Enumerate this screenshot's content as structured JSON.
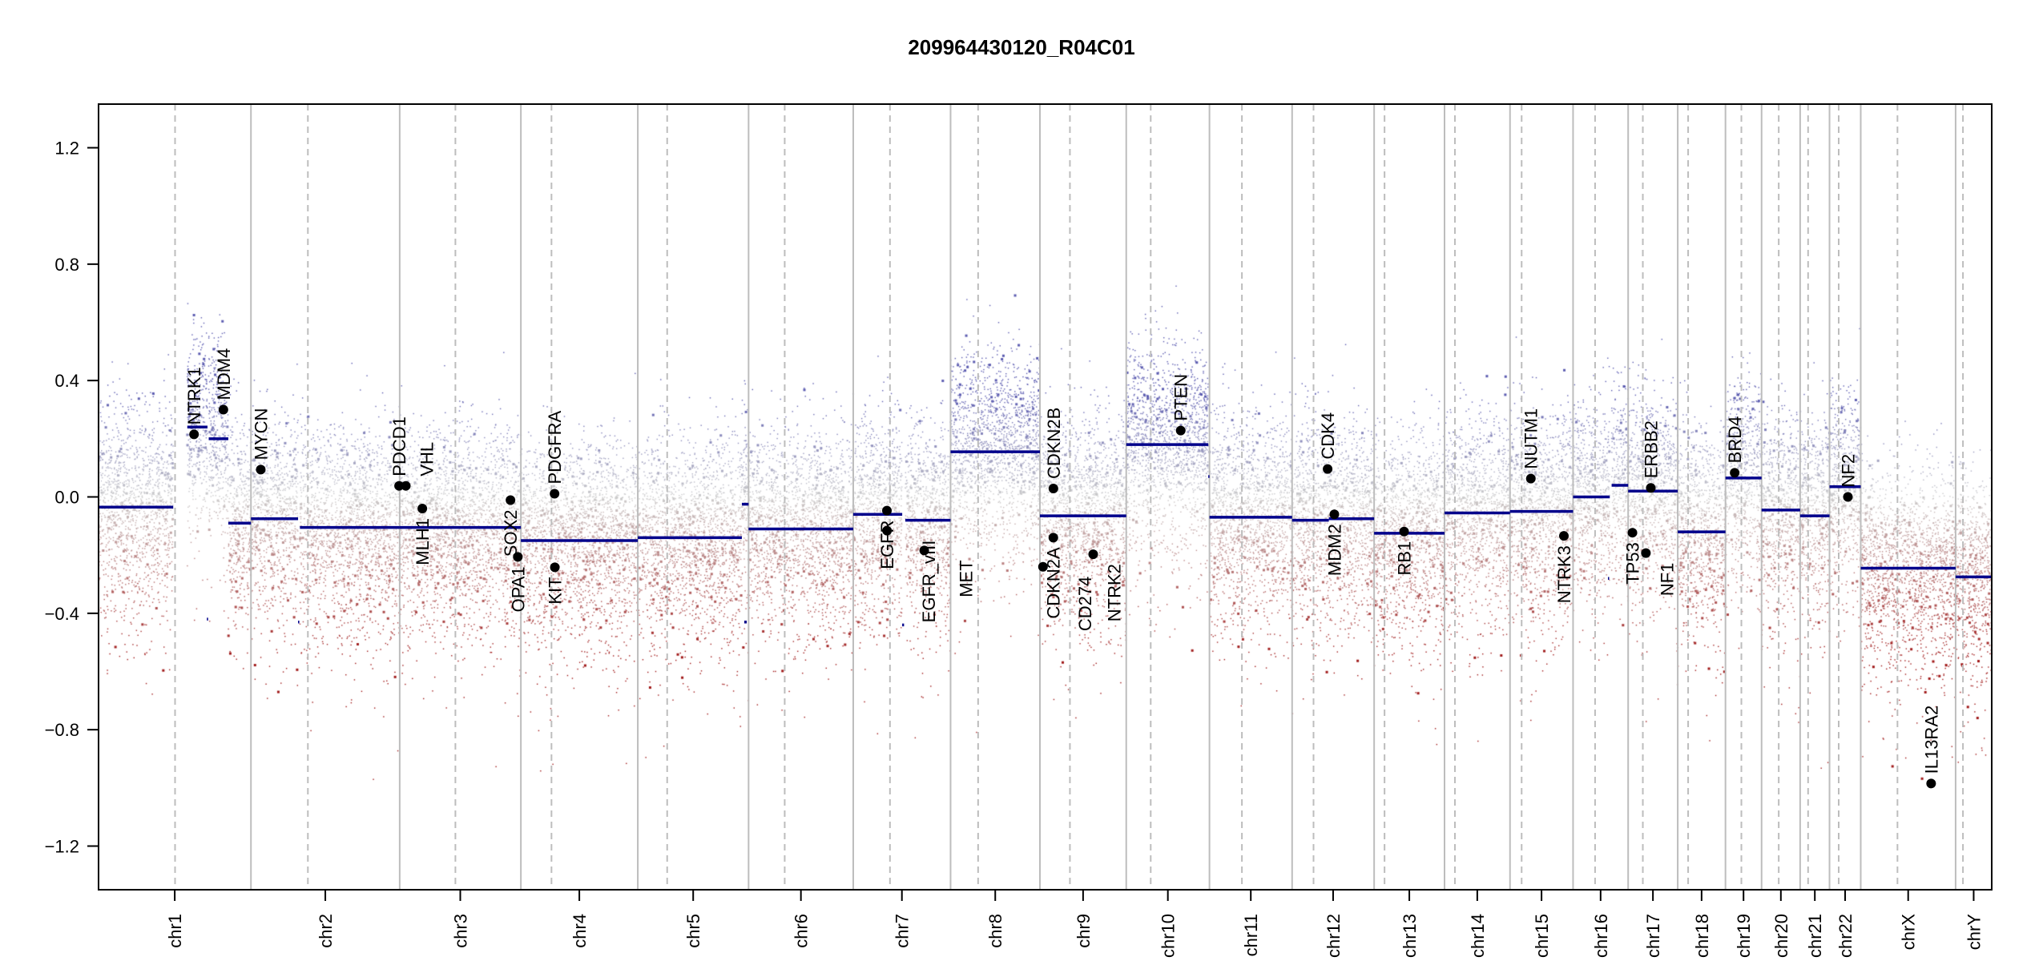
{
  "chart_data": {
    "type": "scatter",
    "title": "209964430120_R04C01",
    "xlabel": "",
    "ylabel": "",
    "ylim": [
      -1.35,
      1.35
    ],
    "yticks": [
      1.2,
      0.8,
      0.4,
      0.0,
      -0.4,
      -0.8,
      -1.2
    ],
    "ytick_labels": [
      "1.2",
      "0.8",
      "0.4",
      "0.0",
      "−0.4",
      "−0.8",
      "−1.2"
    ],
    "chromosomes": [
      "chr1",
      "chr2",
      "chr3",
      "chr4",
      "chr5",
      "chr6",
      "chr7",
      "chr8",
      "chr9",
      "chr10",
      "chr11",
      "chr12",
      "chr13",
      "chr14",
      "chr15",
      "chr16",
      "chr17",
      "chr18",
      "chr19",
      "chr20",
      "chr21",
      "chr22",
      "chrX",
      "chrY"
    ],
    "chrom_lengths_mb": [
      249,
      243,
      198,
      191,
      181,
      171,
      159,
      146,
      141,
      136,
      135,
      134,
      115,
      107,
      103,
      90,
      81,
      78,
      59,
      63,
      48,
      51,
      155,
      59
    ],
    "centromeres_mb": [
      125,
      93,
      91,
      50,
      48,
      59,
      60,
      45,
      49,
      40,
      53,
      35,
      17,
      17,
      19,
      36,
      24,
      17,
      26,
      28,
      13,
      15,
      60,
      12
    ],
    "segments": [
      {
        "chr": "chr1",
        "start": 0,
        "end": 122,
        "mean": -0.035
      },
      {
        "chr": "chr1",
        "start": 145,
        "end": 178,
        "mean": 0.24
      },
      {
        "chr": "chr1",
        "start": 177,
        "end": 179,
        "mean": -0.42
      },
      {
        "chr": "chr1",
        "start": 180,
        "end": 212,
        "mean": 0.2
      },
      {
        "chr": "chr1",
        "start": 212,
        "end": 249,
        "mean": -0.09
      },
      {
        "chr": "chr2",
        "start": 0,
        "end": 77,
        "mean": -0.075
      },
      {
        "chr": "chr2",
        "start": 77,
        "end": 79,
        "mean": -0.43
      },
      {
        "chr": "chr2",
        "start": 80,
        "end": 243,
        "mean": -0.105
      },
      {
        "chr": "chr3",
        "start": 0,
        "end": 198,
        "mean": -0.105
      },
      {
        "chr": "chr4",
        "start": 0,
        "end": 191,
        "mean": -0.15
      },
      {
        "chr": "chr5",
        "start": 0,
        "end": 170,
        "mean": -0.14
      },
      {
        "chr": "chr5",
        "start": 170,
        "end": 181,
        "mean": -0.025
      },
      {
        "chr": "chr5",
        "start": 174,
        "end": 178,
        "mean": -0.43
      },
      {
        "chr": "chr6",
        "start": 0,
        "end": 171,
        "mean": -0.11
      },
      {
        "chr": "chr7",
        "start": 0,
        "end": 80,
        "mean": -0.06
      },
      {
        "chr": "chr7",
        "start": 80,
        "end": 83,
        "mean": -0.44
      },
      {
        "chr": "chr7",
        "start": 85,
        "end": 159,
        "mean": -0.08
      },
      {
        "chr": "chr8",
        "start": 0,
        "end": 146,
        "mean": 0.155
      },
      {
        "chr": "chr9",
        "start": 0,
        "end": 141,
        "mean": -0.065
      },
      {
        "chr": "chr10",
        "start": 0,
        "end": 134,
        "mean": 0.18
      },
      {
        "chr": "chr10",
        "start": 134,
        "end": 136,
        "mean": 0.07
      },
      {
        "chr": "chr11",
        "start": 0,
        "end": 135,
        "mean": -0.07
      },
      {
        "chr": "chr12",
        "start": 0,
        "end": 60,
        "mean": -0.08
      },
      {
        "chr": "chr12",
        "start": 60,
        "end": 134,
        "mean": -0.075
      },
      {
        "chr": "chr13",
        "start": 0,
        "end": 115,
        "mean": -0.125
      },
      {
        "chr": "chr14",
        "start": 0,
        "end": 107,
        "mean": -0.055
      },
      {
        "chr": "chr15",
        "start": 0,
        "end": 103,
        "mean": -0.05
      },
      {
        "chr": "chr16",
        "start": 0,
        "end": 60,
        "mean": 0.0
      },
      {
        "chr": "chr16",
        "start": 57,
        "end": 59,
        "mean": -0.28
      },
      {
        "chr": "chr16",
        "start": 63,
        "end": 90,
        "mean": 0.04
      },
      {
        "chr": "chr17",
        "start": 0,
        "end": 81,
        "mean": 0.02
      },
      {
        "chr": "chr18",
        "start": 0,
        "end": 78,
        "mean": -0.12
      },
      {
        "chr": "chr19",
        "start": 0,
        "end": 59,
        "mean": 0.065
      },
      {
        "chr": "chr20",
        "start": 0,
        "end": 63,
        "mean": -0.045
      },
      {
        "chr": "chr21",
        "start": 0,
        "end": 48,
        "mean": -0.065
      },
      {
        "chr": "chr22",
        "start": 0,
        "end": 51,
        "mean": 0.035
      },
      {
        "chr": "chrX",
        "start": 0,
        "end": 155,
        "mean": -0.245
      },
      {
        "chr": "chrY",
        "start": 0,
        "end": 59,
        "mean": -0.275
      }
    ],
    "genes": [
      {
        "name": "NTRK1",
        "chr": "chr1",
        "pos_mb": 156,
        "value": 0.215,
        "label_side": "above"
      },
      {
        "name": "MDM4",
        "chr": "chr1",
        "pos_mb": 204,
        "value": 0.3,
        "label_side": "above"
      },
      {
        "name": "MYCN",
        "chr": "chr2",
        "pos_mb": 16,
        "value": 0.094,
        "label_side": "above"
      },
      {
        "name": "PDCD1",
        "chr": "chr2",
        "pos_mb": 242,
        "value": 0.038,
        "label_side": "above"
      },
      {
        "name": "VHL",
        "chr": "chr3",
        "pos_mb": 10,
        "value": 0.038,
        "label_side": "above"
      },
      {
        "name": "MLH1",
        "chr": "chr3",
        "pos_mb": 37,
        "value": -0.04,
        "label_side": "below"
      },
      {
        "name": "SOX2",
        "chr": "chr3",
        "pos_mb": 181,
        "value": -0.011,
        "label_side": "below"
      },
      {
        "name": "OPA1",
        "chr": "chr3",
        "pos_mb": 193,
        "value": -0.206,
        "label_side": "below"
      },
      {
        "name": "PDGFRA",
        "chr": "chr4",
        "pos_mb": 55,
        "value": 0.011,
        "label_side": "above"
      },
      {
        "name": "KIT",
        "chr": "chr4",
        "pos_mb": 55.5,
        "value": -0.242,
        "label_side": "below"
      },
      {
        "name": "EGFR",
        "chr": "chr7",
        "pos_mb": 55,
        "value": -0.047,
        "label_side": "below"
      },
      {
        "name": "EGFR_vIII",
        "chr": "chr7",
        "pos_mb": 55.2,
        "value": -0.116,
        "label_side": "below"
      },
      {
        "name": "MET",
        "chr": "chr7",
        "pos_mb": 116,
        "value": -0.184,
        "label_side": "below"
      },
      {
        "name": "CDKN2B",
        "chr": "chr9",
        "pos_mb": 22,
        "value": 0.029,
        "label_side": "above"
      },
      {
        "name": "CDKN2A",
        "chr": "chr9",
        "pos_mb": 21.9,
        "value": -0.14,
        "label_side": "below"
      },
      {
        "name": "CD274",
        "chr": "chr9",
        "pos_mb": 5,
        "value": -0.24,
        "label_side": "below"
      },
      {
        "name": "NTRK2",
        "chr": "chr9",
        "pos_mb": 87,
        "value": -0.197,
        "label_side": "below"
      },
      {
        "name": "PTEN",
        "chr": "chr10",
        "pos_mb": 89,
        "value": 0.228,
        "label_side": "above"
      },
      {
        "name": "CDK4",
        "chr": "chr12",
        "pos_mb": 58,
        "value": 0.096,
        "label_side": "above"
      },
      {
        "name": "MDM2",
        "chr": "chr12",
        "pos_mb": 69,
        "value": -0.06,
        "label_side": "below"
      },
      {
        "name": "RB1",
        "chr": "chr13",
        "pos_mb": 49,
        "value": -0.119,
        "label_side": "below"
      },
      {
        "name": "NUTM1",
        "chr": "chr15",
        "pos_mb": 34,
        "value": 0.063,
        "label_side": "above"
      },
      {
        "name": "NTRK3",
        "chr": "chr15",
        "pos_mb": 88,
        "value": -0.134,
        "label_side": "below"
      },
      {
        "name": "TP53",
        "chr": "chr17",
        "pos_mb": 7,
        "value": -0.123,
        "label_side": "below"
      },
      {
        "name": "NF1",
        "chr": "chr17",
        "pos_mb": 29,
        "value": -0.193,
        "label_side": "below"
      },
      {
        "name": "ERBB2",
        "chr": "chr17",
        "pos_mb": 37,
        "value": 0.031,
        "label_side": "above"
      },
      {
        "name": "BRD4",
        "chr": "chr19",
        "pos_mb": 15,
        "value": 0.083,
        "label_side": "above"
      },
      {
        "name": "NF2",
        "chr": "chr22",
        "pos_mb": 30,
        "value": 0.0,
        "label_side": "above"
      },
      {
        "name": "IL13RA2",
        "chr": "chrX",
        "pos_mb": 115,
        "value": -0.985,
        "label_side": "above"
      }
    ],
    "colors": {
      "segment": "#00008b",
      "gain": "#5b5bb0",
      "neutral": "#cccccc",
      "loss": "#a01818",
      "grid_solid": "#bdbdbd",
      "grid_dashed": "#bdbdbd"
    },
    "grid": true,
    "legend": "none"
  }
}
